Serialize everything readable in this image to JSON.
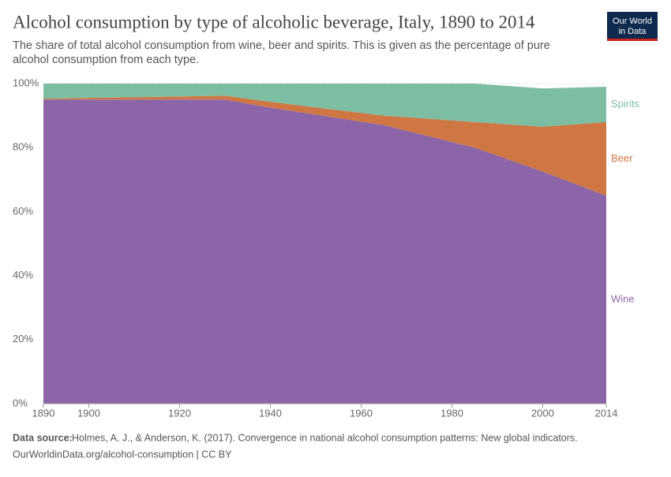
{
  "chart_data": {
    "type": "stacked-area",
    "title": "Alcohol consumption by type of alcoholic beverage, Italy, 1890 to 2014",
    "subtitle": [
      "The share of total alcohol consumption from wine, beer and spirits. This is given as the percentage of pure",
      "alcohol consumption from each type."
    ],
    "logo": [
      "Our World",
      "in Data"
    ],
    "source_label": "Data source:",
    "source": "Holmes, A. J., & Anderson, K. (2017). Convergence in national alcohol consumption patterns: New global indicators.",
    "footer": "OurWorldinData.org/alcohol-consumption | CC BY",
    "x": [
      1890,
      1930,
      1940,
      1965,
      1985,
      2000,
      2014
    ],
    "series": [
      {
        "name": "Wine",
        "color": "#8c65a9",
        "values": [
          95,
          95,
          92.5,
          87,
          80,
          72.5,
          65
        ]
      },
      {
        "name": "Beer",
        "color": "#cf7744",
        "values": [
          0.3,
          1.2,
          1.8,
          3,
          8,
          14,
          23
        ]
      },
      {
        "name": "Spirits",
        "color": "#7dbea2",
        "values": [
          4.7,
          3.8,
          5.7,
          10,
          12,
          12,
          11
        ]
      }
    ],
    "xlim": [
      1890,
      2014
    ],
    "xticks": [
      1890,
      1900,
      1920,
      1940,
      1960,
      1980,
      2000,
      2014
    ],
    "ylim": [
      0,
      100
    ],
    "yticks": [
      {
        "value": 0,
        "label": "0%"
      },
      {
        "value": 20,
        "label": "20%"
      },
      {
        "value": 40,
        "label": "40%"
      },
      {
        "value": 60,
        "label": "60%"
      },
      {
        "value": 80,
        "label": "80%"
      },
      {
        "value": 100,
        "label": "100%"
      }
    ],
    "grid": true
  }
}
